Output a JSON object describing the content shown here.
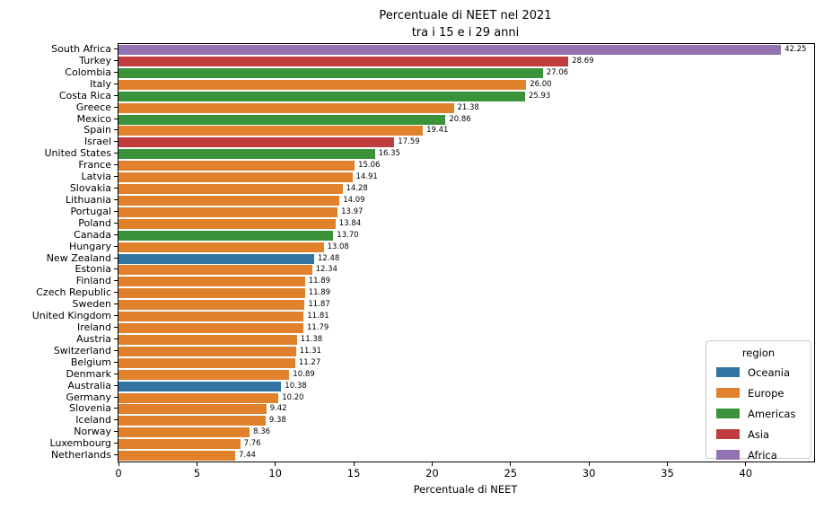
{
  "chart_data": {
    "type": "bar",
    "orientation": "horizontal",
    "title_line1": "Percentuale di NEET nel 2021",
    "title_line2": "tra i 15 e i 29 anni",
    "xlabel": "Percentuale di NEET",
    "ylabel": "",
    "xticks": [
      0,
      5,
      10,
      15,
      20,
      25,
      30,
      35,
      40
    ],
    "xlim": [
      0,
      44.36
    ],
    "grid": false,
    "categories": [
      "South Africa",
      "Turkey",
      "Colombia",
      "Italy",
      "Costa Rica",
      "Greece",
      "Mexico",
      "Spain",
      "Israel",
      "United States",
      "France",
      "Latvia",
      "Slovakia",
      "Lithuania",
      "Portugal",
      "Poland",
      "Canada",
      "Hungary",
      "New Zealand",
      "Estonia",
      "Finland",
      "Czech Republic",
      "Sweden",
      "United Kingdom",
      "Ireland",
      "Austria",
      "Switzerland",
      "Belgium",
      "Denmark",
      "Australia",
      "Germany",
      "Slovenia",
      "Iceland",
      "Norway",
      "Luxembourg",
      "Netherlands"
    ],
    "values": [
      42.25,
      28.69,
      27.06,
      26.0,
      25.93,
      21.38,
      20.86,
      19.41,
      17.59,
      16.35,
      15.06,
      14.91,
      14.28,
      14.09,
      13.97,
      13.84,
      13.7,
      13.08,
      12.48,
      12.34,
      11.89,
      11.89,
      11.87,
      11.81,
      11.79,
      11.38,
      11.31,
      11.27,
      10.89,
      10.38,
      10.2,
      9.42,
      9.38,
      8.36,
      7.76,
      7.44
    ],
    "regions": [
      "Africa",
      "Asia",
      "Americas",
      "Europe",
      "Americas",
      "Europe",
      "Americas",
      "Europe",
      "Asia",
      "Americas",
      "Europe",
      "Europe",
      "Europe",
      "Europe",
      "Europe",
      "Europe",
      "Americas",
      "Europe",
      "Oceania",
      "Europe",
      "Europe",
      "Europe",
      "Europe",
      "Europe",
      "Europe",
      "Europe",
      "Europe",
      "Europe",
      "Europe",
      "Oceania",
      "Europe",
      "Europe",
      "Europe",
      "Europe",
      "Europe",
      "Europe"
    ],
    "region_colors": {
      "Oceania": "#3274a1",
      "Europe": "#e1812c",
      "Americas": "#3a923a",
      "Asia": "#c03d3e",
      "Africa": "#9372b2"
    },
    "legend": {
      "title": "region",
      "position": "lower right",
      "entries": [
        "Oceania",
        "Europe",
        "Americas",
        "Asia",
        "Africa"
      ]
    }
  }
}
